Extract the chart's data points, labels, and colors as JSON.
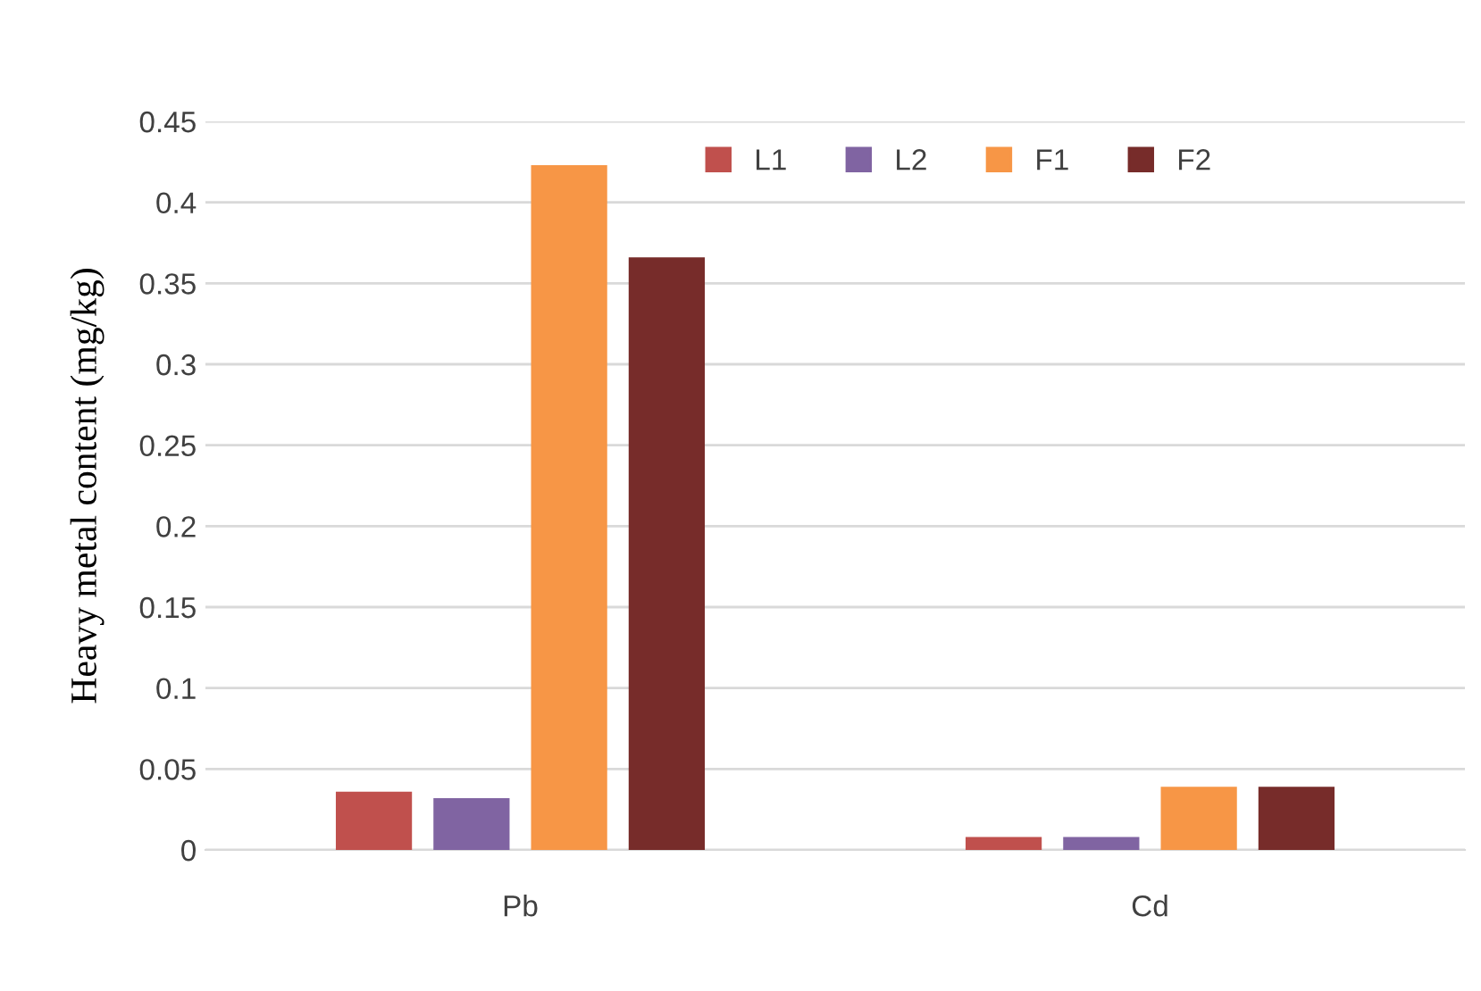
{
  "chart_data": {
    "type": "bar",
    "ylabel": "Heavy metal content (mg/kg)",
    "categories": [
      "Pb",
      "Cd"
    ],
    "series": [
      {
        "name": "L1",
        "color": "#c0504d",
        "values": [
          0.036,
          0.008
        ]
      },
      {
        "name": "L2",
        "color": "#8064a2",
        "values": [
          0.032,
          0.008
        ]
      },
      {
        "name": "F1",
        "color": "#f79646",
        "values": [
          0.423,
          0.039
        ]
      },
      {
        "name": "F2",
        "color": "#772c2a",
        "values": [
          0.366,
          0.039
        ]
      }
    ],
    "ylim": [
      0,
      0.45
    ],
    "yticks": [
      {
        "value": 0,
        "label": "0"
      },
      0.05,
      0.1,
      0.15,
      0.2,
      0.25,
      0.3,
      0.35,
      0.4,
      0.45
    ],
    "grid": "y",
    "legend": "top right"
  }
}
